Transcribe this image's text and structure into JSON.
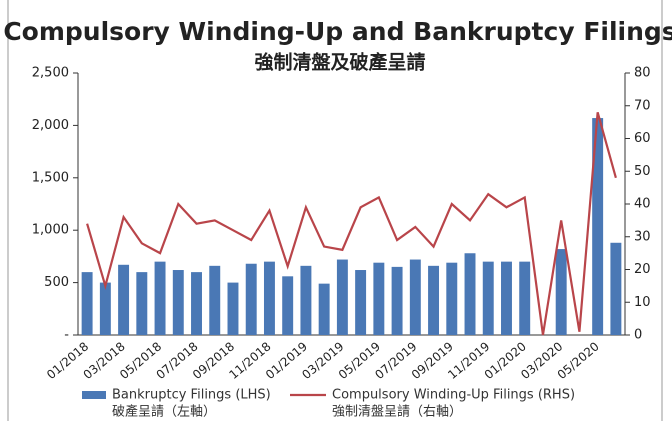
{
  "chart_data": {
    "type": "bar_line",
    "title": "Compulsory Winding-Up and Bankruptcy Filings",
    "subtitle": "強制清盤及破產呈請",
    "categories": [
      "01/2018",
      null,
      "03/2018",
      null,
      "05/2018",
      null,
      "07/2018",
      null,
      "09/2018",
      null,
      "11/2018",
      null,
      "01/2019",
      null,
      "03/2019",
      null,
      "05/2019",
      null,
      "07/2019",
      null,
      "09/2019",
      null,
      "11/2019",
      null,
      "01/2020",
      null,
      "03/2020",
      null,
      "05/2020",
      null
    ],
    "series": [
      {
        "name": "Bankruptcy Filings (LHS)",
        "name_zh": "破產呈請（左軸）",
        "type": "bar",
        "axis": "y",
        "color": "#4a78b5",
        "values": [
          600,
          500,
          670,
          600,
          700,
          620,
          600,
          660,
          500,
          680,
          700,
          560,
          660,
          490,
          720,
          620,
          690,
          650,
          720,
          660,
          690,
          780,
          700,
          700,
          700,
          null,
          820,
          null,
          2070,
          880
        ]
      },
      {
        "name": "Compulsory Winding-Up Filings (RHS)",
        "name_zh": "強制清盤呈請（右軸）",
        "type": "line",
        "axis": "y2",
        "color": "#b9454a",
        "values": [
          34,
          15,
          36,
          28,
          25,
          40,
          34,
          35,
          32,
          29,
          38,
          21,
          39,
          27,
          26,
          39,
          42,
          29,
          33,
          27,
          40,
          35,
          43,
          39,
          42,
          0,
          35,
          1,
          68,
          48
        ]
      }
    ],
    "ylim": [
      0,
      2500
    ],
    "yticks": [
      {
        "value": 0,
        "label": "-"
      },
      500,
      {
        "value": 1000,
        "label": "1,000"
      },
      {
        "value": 1500,
        "label": "1,500"
      },
      {
        "value": 2000,
        "label": "2,000"
      },
      {
        "value": 2500,
        "label": "2,500"
      }
    ],
    "y2lim": [
      0,
      80
    ],
    "y2ticks": [
      0,
      10,
      20,
      30,
      40,
      50,
      60,
      70,
      80
    ],
    "legend": "bottom"
  }
}
